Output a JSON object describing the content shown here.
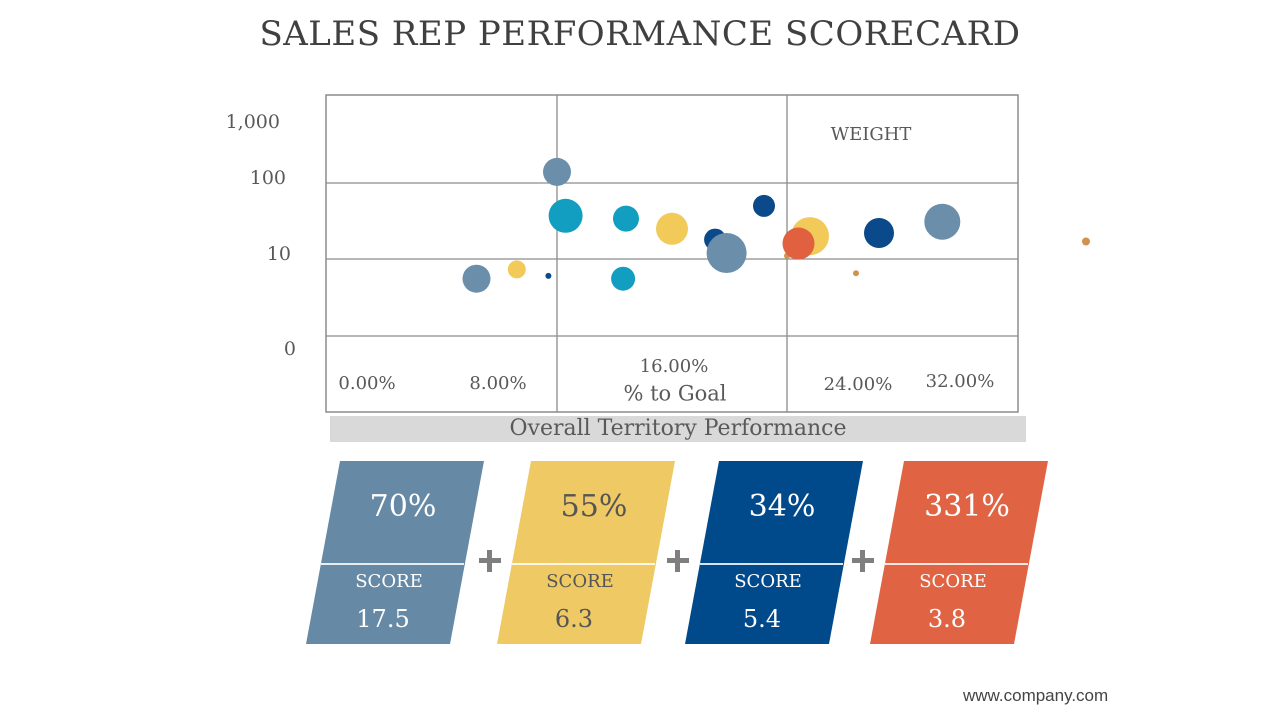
{
  "title": "SALES REP PERFORMANCE SCORECARD",
  "chart_data": {
    "type": "scatter",
    "subtype": "bubble",
    "title": "",
    "xlabel": "% to Goal",
    "ylabel": "",
    "x_tick_labels": [
      "0.00%",
      "8.00%",
      "16.00%",
      "24.00%",
      "32.00%"
    ],
    "y_tick_labels": [
      "0",
      "10",
      "100",
      "1,000"
    ],
    "xlim": [
      0,
      0.36
    ],
    "y_scale": "log",
    "grid": true,
    "annotation": "WEIGHT",
    "points": [
      {
        "x": 0.097,
        "y": 5.5,
        "size": 14,
        "color": "#6b8fab"
      },
      {
        "x": 0.111,
        "y": 7.3,
        "size": 9,
        "color": "#f2ca5a"
      },
      {
        "x": 0.122,
        "y": 6.0,
        "size": 3,
        "color": "#0a4a8a"
      },
      {
        "x": 0.125,
        "y": 140,
        "size": 14,
        "color": "#6b8fab"
      },
      {
        "x": 0.128,
        "y": 37,
        "size": 17,
        "color": "#119ec0"
      },
      {
        "x": 0.148,
        "y": 5.5,
        "size": 12,
        "color": "#119ec0"
      },
      {
        "x": 0.149,
        "y": 34,
        "size": 13,
        "color": "#119ec0"
      },
      {
        "x": 0.165,
        "y": 25,
        "size": 16,
        "color": "#f2ca5a"
      },
      {
        "x": 0.18,
        "y": 18,
        "size": 11,
        "color": "#0a4a8a"
      },
      {
        "x": 0.184,
        "y": 12,
        "size": 20,
        "color": "#6b8fab"
      },
      {
        "x": 0.197,
        "y": 50,
        "size": 11,
        "color": "#0a4a8a"
      },
      {
        "x": 0.205,
        "y": 11,
        "size": 3,
        "color": "#d0934e"
      },
      {
        "x": 0.213,
        "y": 20,
        "size": 19,
        "color": "#f2ca5a"
      },
      {
        "x": 0.209,
        "y": 16,
        "size": 16,
        "color": "#e06040"
      },
      {
        "x": 0.229,
        "y": 6.5,
        "size": 3,
        "color": "#d0934e"
      },
      {
        "x": 0.237,
        "y": 22,
        "size": 15,
        "color": "#0a4a8a"
      },
      {
        "x": 0.259,
        "y": 31,
        "size": 18,
        "color": "#6b8fab"
      },
      {
        "x": 0.309,
        "y": 17,
        "size": 4,
        "color": "#d0934e"
      }
    ]
  },
  "territory_label": "Overall Territory Performance",
  "cards": [
    {
      "percent": "70%",
      "score_label": "SCORE",
      "score": "17.5",
      "color": "#6689a6",
      "text_color": "#ffffff"
    },
    {
      "percent": "55%",
      "score_label": "SCORE",
      "score": "6.3",
      "color": "#eec964",
      "text_color": "#555555"
    },
    {
      "percent": "34%",
      "score_label": "SCORE",
      "score": "5.4",
      "color": "#004a8c",
      "text_color": "#ffffff"
    },
    {
      "percent": "331%",
      "score_label": "SCORE",
      "score": "3.8",
      "color": "#e06443",
      "text_color": "#ffffff"
    }
  ],
  "footer_url": "www.company.com"
}
